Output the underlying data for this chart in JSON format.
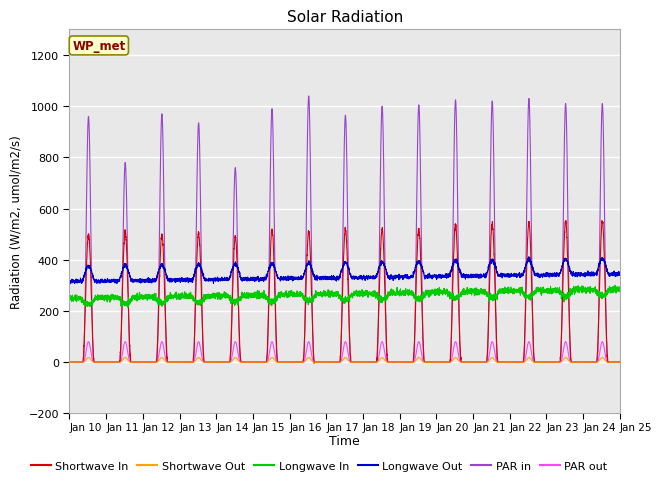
{
  "title": "Solar Radiation",
  "xlabel": "Time",
  "ylabel": "Radiation (W/m2, umol/m2/s)",
  "ylim": [
    -200,
    1300
  ],
  "yticks": [
    -200,
    0,
    200,
    400,
    600,
    800,
    1000,
    1200
  ],
  "xlim": [
    0,
    15
  ],
  "xtick_labels": [
    "Jan 10",
    "Jan 11",
    "Jan 12",
    "Jan 13",
    "Jan 14",
    "Jan 15",
    "Jan 16",
    "Jan 17",
    "Jan 18",
    "Jan 19",
    "Jan 20",
    "Jan 21",
    "Jan 22",
    "Jan 23",
    "Jan 24",
    "Jan 25"
  ],
  "legend_label": "WP_met",
  "fig_bg_color": "#ffffff",
  "plot_bg_color": "#e8e8e8",
  "grid_color": "#ffffff",
  "series": {
    "shortwave_in": {
      "color": "#dd0000",
      "label": "Shortwave In",
      "lw": 0.8
    },
    "shortwave_out": {
      "color": "#ffa500",
      "label": "Shortwave Out",
      "lw": 0.8
    },
    "longwave_in": {
      "color": "#00cc00",
      "label": "Longwave In",
      "lw": 0.8
    },
    "longwave_out": {
      "color": "#0000cc",
      "label": "Longwave Out",
      "lw": 0.8
    },
    "par_in": {
      "color": "#9944cc",
      "label": "PAR in",
      "lw": 0.8
    },
    "par_out": {
      "color": "#ff44ff",
      "label": "PAR out",
      "lw": 0.8
    }
  },
  "n_days": 15,
  "pts_per_day": 288
}
